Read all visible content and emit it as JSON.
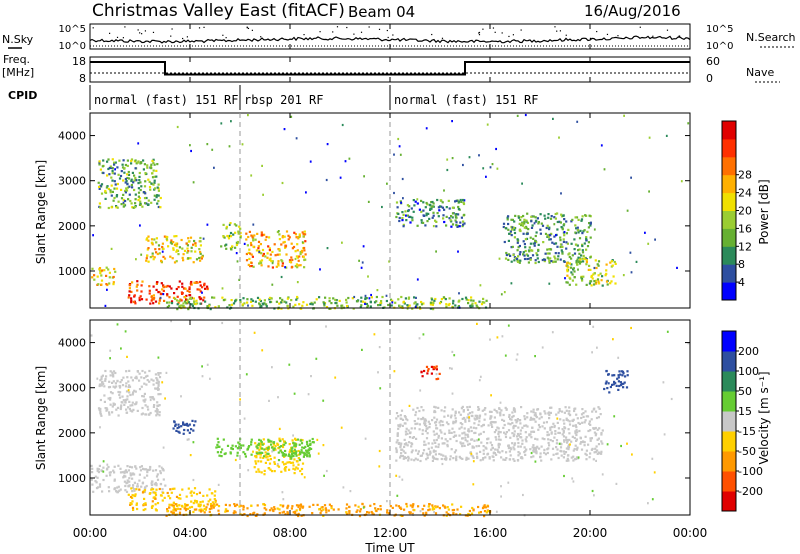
{
  "header": {
    "title": "Christmas Valley East (fitACF)",
    "beam": "Beam 04",
    "date": "16/Aug/2016"
  },
  "left_labels": {
    "nsky": "N.Sky",
    "freq_line1": "Freq.",
    "freq_line2": "[MHz]",
    "cpid": "CPID"
  },
  "right_labels": {
    "nsearch": "N.Search",
    "nave": "Nave"
  },
  "cpid_segments": [
    {
      "label": "normal (fast) 151 RF",
      "start": 0,
      "end": 6
    },
    {
      "label": "rbsp 201 RF",
      "start": 6,
      "end": 12
    },
    {
      "label": "normal (fast) 151 RF",
      "start": 12,
      "end": 24
    }
  ],
  "axes": {
    "xlabel": "Time UT",
    "ylabel": "Slant Range [km]",
    "xticks": [
      "00:00",
      "04:00",
      "08:00",
      "12:00",
      "16:00",
      "20:00",
      "00:00"
    ],
    "yticks": [
      "1000",
      "2000",
      "3000",
      "4000"
    ],
    "nsky_ticks": [
      "10^5",
      "10^0"
    ],
    "nsearch_ticks": [
      "10^5",
      "10^0"
    ],
    "freq_ticks": [
      "18",
      "8"
    ],
    "nave_ticks": [
      "60",
      "0"
    ]
  },
  "power_scale": {
    "label": "Power [dB]",
    "ticks": [
      "4",
      "8",
      "12",
      "16",
      "20",
      "24",
      "28"
    ],
    "colors": [
      "#0000ff",
      "#2e4fa0",
      "#2b8a5a",
      "#66b032",
      "#9acd32",
      "#f0e000",
      "#ffb000",
      "#ff7000",
      "#ff3000",
      "#e00000"
    ]
  },
  "velocity_scale": {
    "label": "Velocity [m s⁻¹]",
    "ticks": [
      "200",
      "100",
      "50",
      "15",
      "-15",
      "-50",
      "-100",
      "-200"
    ],
    "colors": [
      "#0000ff",
      "#2e4fa0",
      "#2b8a5a",
      "#66cc33",
      "#c8c8c8",
      "#ffd000",
      "#ff9900",
      "#ff5000",
      "#e00000"
    ]
  },
  "chart_data": {
    "type": "heatmap",
    "x_range_hours": [
      0,
      24
    ],
    "y_range_km": [
      180,
      4500
    ],
    "frequency_mhz": [
      {
        "start": 0,
        "end": 3,
        "value": 16
      },
      {
        "start": 3,
        "end": 15,
        "value": 11
      },
      {
        "start": 15,
        "end": 24,
        "value": 16
      }
    ],
    "power_patches": [
      {
        "t0": 0.3,
        "t1": 2.8,
        "r0": 2400,
        "r1": 3500,
        "level": 0.35
      },
      {
        "t0": 0.0,
        "t1": 1.0,
        "r0": 700,
        "r1": 1100,
        "level": 0.6
      },
      {
        "t0": 1.5,
        "t1": 4.7,
        "r0": 300,
        "r1": 800,
        "level": 0.85
      },
      {
        "t0": 2.2,
        "t1": 4.5,
        "r0": 1200,
        "r1": 1800,
        "level": 0.55
      },
      {
        "t0": 6.2,
        "t1": 8.6,
        "r0": 1100,
        "r1": 1900,
        "level": 0.65
      },
      {
        "t0": 5.2,
        "t1": 6.0,
        "r0": 1500,
        "r1": 2100,
        "level": 0.4
      },
      {
        "t0": 12.2,
        "t1": 15.0,
        "r0": 2000,
        "r1": 2600,
        "level": 0.25
      },
      {
        "t0": 16.5,
        "t1": 20.0,
        "r0": 1200,
        "r1": 2300,
        "level": 0.3
      },
      {
        "t0": 19.0,
        "t1": 21.0,
        "r0": 700,
        "r1": 1300,
        "level": 0.45
      },
      {
        "t0": 3.0,
        "t1": 16.0,
        "r0": 180,
        "r1": 450,
        "level": 0.4
      }
    ],
    "velocity_patches": [
      {
        "t0": 0.3,
        "t1": 2.8,
        "r0": 2400,
        "r1": 3400,
        "vel": 0
      },
      {
        "t0": 0.0,
        "t1": 3.0,
        "r0": 700,
        "r1": 1300,
        "vel": 0
      },
      {
        "t0": 3.3,
        "t1": 4.5,
        "r0": 2000,
        "r1": 2300,
        "vel": 180
      },
      {
        "t0": 6.5,
        "t1": 8.5,
        "r0": 1100,
        "r1": 1900,
        "vel": -30
      },
      {
        "t0": 5.0,
        "t1": 9.0,
        "r0": 1500,
        "r1": 1900,
        "vel": 30
      },
      {
        "t0": 7.5,
        "t1": 8.8,
        "r0": 1400,
        "r1": 1700,
        "vel": 30
      },
      {
        "t0": 1.5,
        "t1": 5.0,
        "r0": 300,
        "r1": 800,
        "vel": -40
      },
      {
        "t0": 3.0,
        "t1": 16.0,
        "r0": 180,
        "r1": 450,
        "vel": -60
      },
      {
        "t0": 12.2,
        "t1": 20.5,
        "r0": 1400,
        "r1": 2600,
        "vel": 0
      },
      {
        "t0": 13.2,
        "t1": 14.0,
        "r0": 3200,
        "r1": 3500,
        "vel": -200
      },
      {
        "t0": 20.5,
        "t1": 21.5,
        "r0": 2900,
        "r1": 3400,
        "vel": 120
      }
    ]
  }
}
